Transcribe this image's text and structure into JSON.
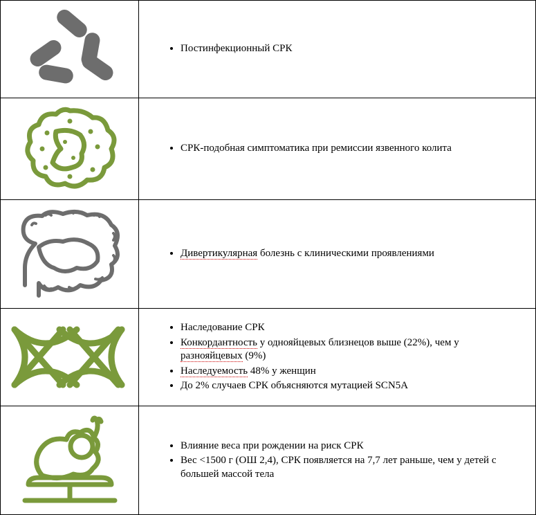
{
  "rows": [
    {
      "icon": "bacteria-icon",
      "bullets": [
        "Постинфекционный СРК"
      ],
      "redline_words": []
    },
    {
      "icon": "germ-icon",
      "bullets": [
        "СРК-подобная симптоматика при ремиссии язвенного колита"
      ],
      "redline_words": []
    },
    {
      "icon": "colon-icon",
      "bullets": [
        "Дивертикулярная болезнь с клиническими проявлениями"
      ],
      "redline_words": [
        "Дивертикулярная"
      ]
    },
    {
      "icon": "dna-icon",
      "bullets": [
        "Наследование СРК",
        "Конкордантность у однояйцевых близнецов выше (22%), чем у разнояйцевых (9%)",
        "Наследуемость 48% у женщин",
        "До 2% случаев СРК объясняются мутацией SCN5A"
      ],
      "redline_words": [
        "Конкордантность",
        "разнояйцевых",
        "Наследуемость"
      ]
    },
    {
      "icon": "baby-scale-icon",
      "bullets": [
        "Влияние веса при рождении на риск СРК",
        "Вес <1500 г (ОШ 2,4), СРК появляется на 7,7 лет раньше, чем у детей с большей массой тела"
      ],
      "redline_words": []
    }
  ],
  "colors": {
    "gray": "#6d6d6d",
    "olive": "#7a9a3b",
    "table_border": "#000000",
    "redline": "#cc0000"
  }
}
